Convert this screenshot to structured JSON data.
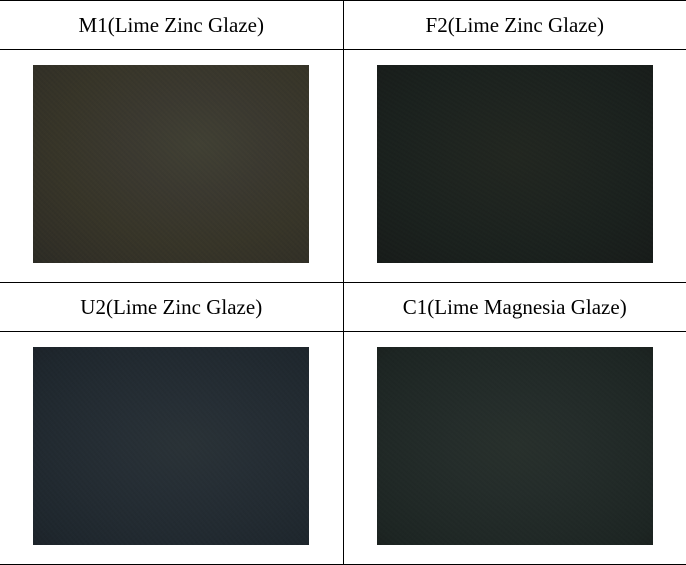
{
  "table": {
    "border_color": "#000000",
    "background_color": "#ffffff",
    "header_fontsize": 21,
    "font_family": "Times New Roman",
    "cells": [
      {
        "label": "M1(Lime Zinc Glaze)",
        "swatch_bg": "radial-gradient(ellipse at 60% 40%, #404034 0%, #3a3830 30%, #363428 60%, #302e26 85%, #2a2a24 100%)",
        "swatch_noise": "repeating-linear-gradient(45deg, rgba(90,80,50,0.06) 0px, rgba(90,80,50,0.06) 2px, rgba(40,40,30,0.04) 2px, rgba(40,40,30,0.04) 4px), repeating-linear-gradient(-45deg, rgba(70,70,55,0.05) 0px, rgba(70,70,55,0.05) 1px, transparent 1px, transparent 3px)"
      },
      {
        "label": "F2(Lime Zinc Glaze)",
        "swatch_bg": "radial-gradient(ellipse at 50% 45%, #222620 0%, #1e231f 35%, #1a201d 65%, #181c1a 90%, #161a18 100%)",
        "swatch_noise": "repeating-linear-gradient(30deg, rgba(50,70,55,0.05) 0px, rgba(50,70,55,0.05) 2px, rgba(20,30,25,0.04) 2px, rgba(20,30,25,0.04) 4px), repeating-linear-gradient(-60deg, rgba(40,55,45,0.04) 0px, rgba(40,55,45,0.04) 1px, transparent 1px, transparent 3px)"
      },
      {
        "label": "U2(Lime Zinc Glaze)",
        "swatch_bg": "radial-gradient(ellipse at 55% 50%, #2a3236 0%, #262e34 30%, #222a30 60%, #1e262c 85%, #1c2228 100%)",
        "swatch_noise": "repeating-linear-gradient(50deg, rgba(50,65,80,0.06) 0px, rgba(50,65,80,0.06) 2px, rgba(25,35,45,0.04) 2px, rgba(25,35,45,0.04) 4px), repeating-linear-gradient(-40deg, rgba(45,55,70,0.05) 0px, rgba(45,55,70,0.05) 1px, transparent 1px, transparent 3px)"
      },
      {
        "label": "C1(Lime  Magnesia Glaze)",
        "swatch_bg": "radial-gradient(ellipse at 50% 50%, #28302c 0%, #242c2a 35%, #202826 65%, #1c2422 90%, #1a201e 100%)",
        "swatch_noise": "repeating-linear-gradient(40deg, rgba(55,70,60,0.05) 0px, rgba(55,70,60,0.05) 2px, rgba(25,35,30,0.04) 2px, rgba(25,35,30,0.04) 4px), repeating-linear-gradient(-50deg, rgba(45,60,50,0.04) 0px, rgba(45,60,50,0.04) 1px, transparent 1px, transparent 3px)"
      }
    ]
  }
}
